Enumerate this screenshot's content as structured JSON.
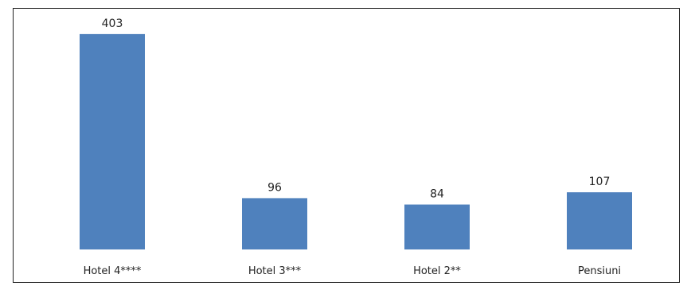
{
  "chart_data": {
    "type": "bar",
    "title": "",
    "categories": [
      "Hotel 4****",
      "Hotel 3***",
      "Hotel 2**",
      "Pensiuni"
    ],
    "values": [
      403,
      96,
      84,
      107
    ],
    "xlabel": "",
    "ylabel": "",
    "ylim": [
      0,
      440
    ],
    "grid": false,
    "legend": "none",
    "bar_color": "#4F81BD",
    "data_labels": true
  }
}
